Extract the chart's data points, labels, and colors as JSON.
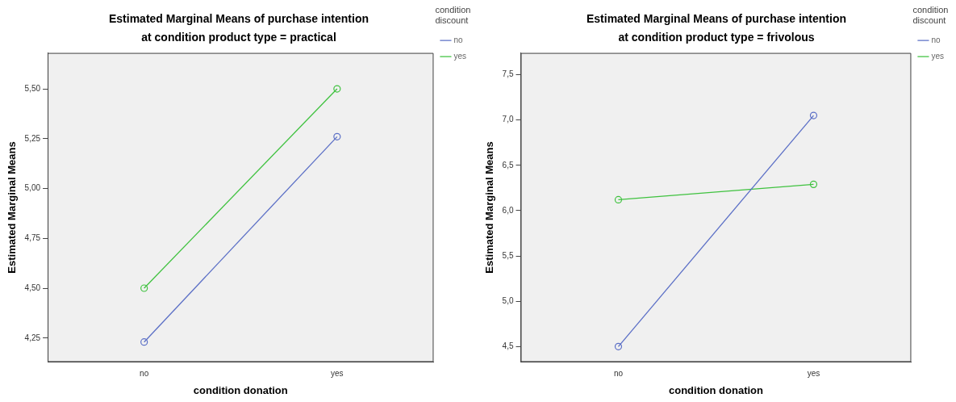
{
  "chart_data": [
    {
      "type": "line",
      "title": "Estimated Marginal Means of purchase intention",
      "subtitle": "at condition product type = practical",
      "xlabel": "condition donation",
      "ylabel": "Estimated Marginal Means",
      "legend_title": "condition discount",
      "categories": [
        "no",
        "yes"
      ],
      "series": [
        {
          "name": "no",
          "color": "#5b6fc6",
          "values": [
            4.23,
            5.26
          ]
        },
        {
          "name": "yes",
          "color": "#3fc23f",
          "values": [
            4.5,
            5.5
          ]
        }
      ],
      "ylim": [
        4.13,
        5.68
      ],
      "yticks": [
        {
          "value": 4.25,
          "label": "4,25"
        },
        {
          "value": 4.5,
          "label": "4,50"
        },
        {
          "value": 4.75,
          "label": "4,75"
        },
        {
          "value": 5.0,
          "label": "5,00"
        },
        {
          "value": 5.25,
          "label": "5,25"
        },
        {
          "value": 5.5,
          "label": "5,50"
        }
      ],
      "grid": false,
      "legend": "right",
      "marker": "circle",
      "line_style": "solid"
    },
    {
      "type": "line",
      "title": "Estimated Marginal Means of purchase intention",
      "subtitle": "at condition product type = frivolous",
      "xlabel": "condition donation",
      "ylabel": "Estimated Marginal Means",
      "legend_title": "condition discount",
      "categories": [
        "no",
        "yes"
      ],
      "series": [
        {
          "name": "no",
          "color": "#5b6fc6",
          "values": [
            4.5,
            7.05
          ]
        },
        {
          "name": "yes",
          "color": "#3fc23f",
          "values": [
            6.12,
            6.29
          ]
        }
      ],
      "ylim": [
        4.33,
        7.74
      ],
      "yticks": [
        {
          "value": 4.5,
          "label": "4,5"
        },
        {
          "value": 5.0,
          "label": "5,0"
        },
        {
          "value": 5.5,
          "label": "5,5"
        },
        {
          "value": 6.0,
          "label": "6,0"
        },
        {
          "value": 6.5,
          "label": "6,5"
        },
        {
          "value": 7.0,
          "label": "7,0"
        },
        {
          "value": 7.5,
          "label": "7,5"
        }
      ],
      "grid": false,
      "legend": "right",
      "marker": "circle",
      "line_style": "solid"
    }
  ]
}
